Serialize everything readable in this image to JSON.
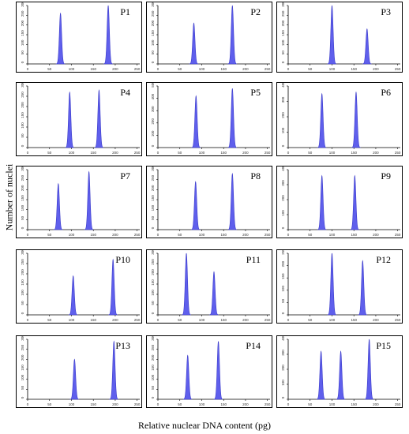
{
  "figure": {
    "ylabel": "Number of nuclei",
    "xlabel": "Relative nuclear DNA content (pg)"
  },
  "chart_data": [
    {
      "type": "histogram",
      "panel": "P1",
      "xlim": [
        0,
        256
      ],
      "ylim": [
        0,
        300
      ],
      "peaks": [
        {
          "x": 75,
          "height": 260
        },
        {
          "x": 184,
          "height": 300
        }
      ]
    },
    {
      "type": "histogram",
      "panel": "P2",
      "xlim": [
        0,
        256
      ],
      "ylim": [
        0,
        300
      ],
      "peaks": [
        {
          "x": 82,
          "height": 210
        },
        {
          "x": 170,
          "height": 300
        }
      ]
    },
    {
      "type": "histogram",
      "panel": "P3",
      "xlim": [
        0,
        256
      ],
      "ylim": [
        0,
        300
      ],
      "peaks": [
        {
          "x": 100,
          "height": 300
        },
        {
          "x": 180,
          "height": 180
        }
      ]
    },
    {
      "type": "histogram",
      "panel": "P4",
      "xlim": [
        0,
        256
      ],
      "ylim": [
        0,
        300
      ],
      "peaks": [
        {
          "x": 96,
          "height": 270
        },
        {
          "x": 163,
          "height": 280
        }
      ]
    },
    {
      "type": "histogram",
      "panel": "P5",
      "xlim": [
        0,
        256
      ],
      "ylim": [
        0,
        500
      ],
      "peaks": [
        {
          "x": 87,
          "height": 420
        },
        {
          "x": 170,
          "height": 480
        }
      ]
    },
    {
      "type": "histogram",
      "panel": "P6",
      "xlim": [
        0,
        256
      ],
      "ylim": [
        0,
        400
      ],
      "peaks": [
        {
          "x": 77,
          "height": 350
        },
        {
          "x": 155,
          "height": 360
        }
      ]
    },
    {
      "type": "histogram",
      "panel": "P7",
      "xlim": [
        0,
        256
      ],
      "ylim": [
        0,
        300
      ],
      "peaks": [
        {
          "x": 70,
          "height": 230
        },
        {
          "x": 140,
          "height": 290
        }
      ]
    },
    {
      "type": "histogram",
      "panel": "P8",
      "xlim": [
        0,
        256
      ],
      "ylim": [
        0,
        300
      ],
      "peaks": [
        {
          "x": 86,
          "height": 240
        },
        {
          "x": 170,
          "height": 280
        }
      ]
    },
    {
      "type": "histogram",
      "panel": "P9",
      "xlim": [
        0,
        256
      ],
      "ylim": [
        0,
        400
      ],
      "peaks": [
        {
          "x": 77,
          "height": 360
        },
        {
          "x": 152,
          "height": 360
        }
      ]
    },
    {
      "type": "histogram",
      "panel": "P10",
      "xlim": [
        0,
        256
      ],
      "ylim": [
        0,
        300
      ],
      "peaks": [
        {
          "x": 104,
          "height": 190
        },
        {
          "x": 195,
          "height": 270
        }
      ]
    },
    {
      "type": "histogram",
      "panel": "P11",
      "xlim": [
        0,
        256
      ],
      "ylim": [
        0,
        300
      ],
      "peaks": [
        {
          "x": 65,
          "height": 300
        },
        {
          "x": 128,
          "height": 210
        }
      ]
    },
    {
      "type": "histogram",
      "panel": "P12",
      "xlim": [
        0,
        256
      ],
      "ylim": [
        0,
        250
      ],
      "peaks": [
        {
          "x": 100,
          "height": 250
        },
        {
          "x": 170,
          "height": 220
        }
      ]
    },
    {
      "type": "histogram",
      "panel": "P13",
      "xlim": [
        0,
        256
      ],
      "ylim": [
        0,
        300
      ],
      "peaks": [
        {
          "x": 107,
          "height": 200
        },
        {
          "x": 197,
          "height": 290
        }
      ]
    },
    {
      "type": "histogram",
      "panel": "P14",
      "xlim": [
        0,
        256
      ],
      "ylim": [
        0,
        300
      ],
      "peaks": [
        {
          "x": 68,
          "height": 220
        },
        {
          "x": 138,
          "height": 290
        }
      ]
    },
    {
      "type": "histogram",
      "panel": "P15",
      "xlim": [
        0,
        256
      ],
      "ylim": [
        0,
        400
      ],
      "peaks": [
        {
          "x": 75,
          "height": 320
        },
        {
          "x": 120,
          "height": 320
        },
        {
          "x": 185,
          "height": 400
        }
      ]
    }
  ],
  "colors": {
    "fill": "#5f5fec",
    "stroke": "#3b3bc9"
  }
}
